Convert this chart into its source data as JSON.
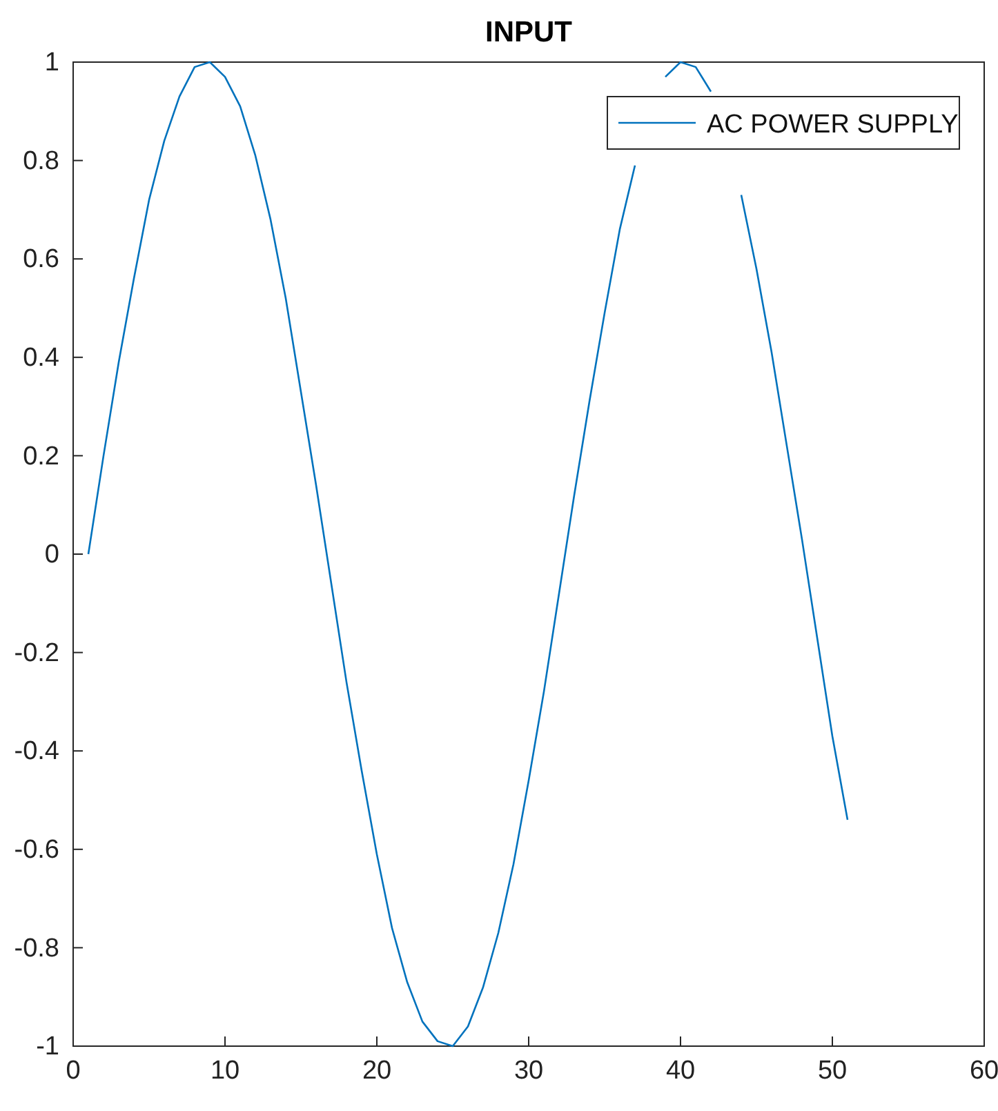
{
  "chart_data": {
    "type": "line",
    "title": "INPUT",
    "x": [
      1,
      2,
      3,
      4,
      5,
      6,
      7,
      8,
      9,
      10,
      11,
      12,
      13,
      14,
      15,
      16,
      17,
      18,
      19,
      20,
      21,
      22,
      23,
      24,
      25,
      26,
      27,
      28,
      29,
      30,
      31,
      32,
      33,
      34,
      35,
      36,
      37,
      38,
      39,
      40,
      41,
      42,
      43,
      44,
      45,
      46,
      47,
      48,
      49,
      50,
      51
    ],
    "series": [
      {
        "name": "AC POWER SUPPLY",
        "color": "#0072bd",
        "values": [
          0,
          0.2,
          0.39,
          0.56,
          0.72,
          0.84,
          0.93,
          0.99,
          1.0,
          0.97,
          0.91,
          0.81,
          0.68,
          0.52,
          0.33,
          0.14,
          -0.06,
          -0.26,
          -0.44,
          -0.61,
          -0.76,
          -0.87,
          -0.95,
          -0.99,
          -1.0,
          -0.96,
          -0.88,
          -0.77,
          -0.63,
          -0.46,
          -0.28,
          -0.08,
          0.12,
          0.31,
          0.49,
          0.66,
          0.79,
          null,
          0.97,
          1.0,
          0.99,
          0.94,
          null,
          0.73,
          0.58,
          0.41,
          0.22,
          0.03,
          -0.17,
          -0.37,
          -0.54
        ]
      }
    ],
    "xlim": [
      0,
      60
    ],
    "xticks": [
      0,
      10,
      20,
      30,
      40,
      50,
      60
    ],
    "ylim": [
      -1,
      1
    ],
    "yticks": [
      -1,
      -0.8,
      -0.6,
      -0.4,
      -0.2,
      0,
      0.2,
      0.4,
      0.6,
      0.8,
      1
    ],
    "grid": false,
    "legend": "top right",
    "marker": "none",
    "line_style": "solid"
  }
}
